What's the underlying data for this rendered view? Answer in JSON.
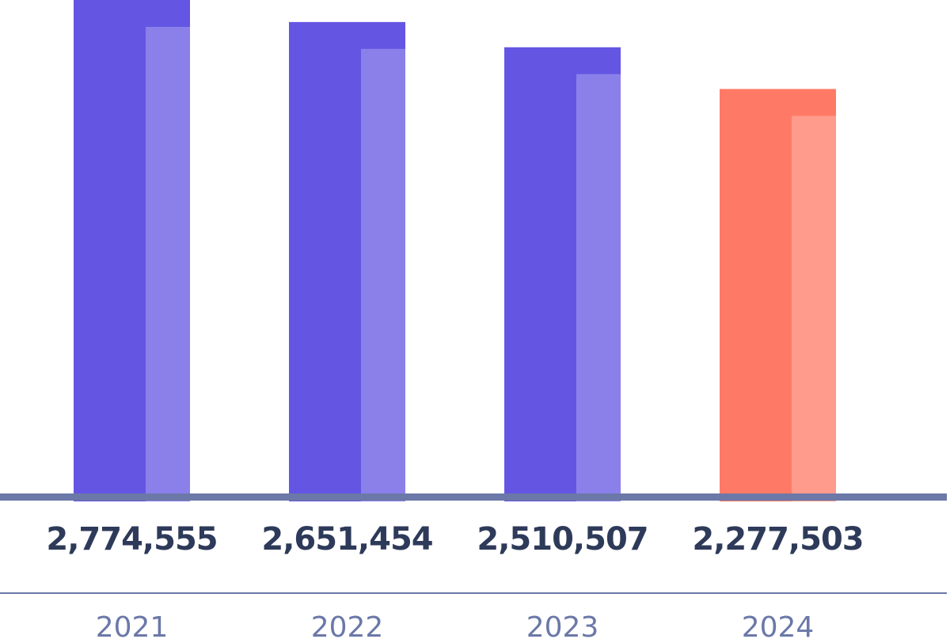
{
  "chart_data": {
    "type": "bar",
    "categories": [
      "2021",
      "2022",
      "2023",
      "2024"
    ],
    "values": [
      2774555,
      2651454,
      2510507,
      2277503
    ],
    "value_labels": [
      "2,774,555",
      "2,651,454",
      "2,510,507",
      "2,277,503"
    ],
    "colors": [
      "#6456e3",
      "#6456e3",
      "#6456e3",
      "#ff7a66"
    ]
  }
}
